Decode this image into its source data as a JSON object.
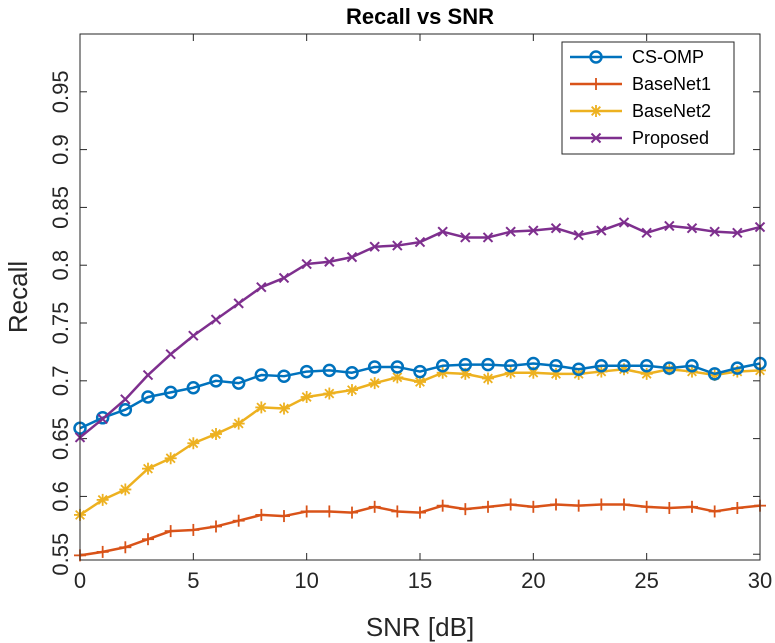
{
  "chart_data": {
    "type": "line",
    "title": "Recall vs SNR",
    "xlabel": "SNR [dB]",
    "ylabel": "Recall",
    "xlim": [
      0,
      30
    ],
    "ylim": [
      0.545,
      1.0
    ],
    "xticks": [
      0,
      5,
      10,
      15,
      20,
      25,
      30
    ],
    "xtick_labels": [
      "0",
      "5",
      "10",
      "15",
      "20",
      "25",
      "30"
    ],
    "yticks": [
      0.55,
      0.6,
      0.65,
      0.7,
      0.75,
      0.8,
      0.85,
      0.9,
      0.95
    ],
    "ytick_labels": [
      "0.55",
      "0.6",
      "0.65",
      "0.7",
      "0.75",
      "0.8",
      "0.85",
      "0.9",
      "0.95"
    ],
    "grid": false,
    "legend_position": "top-right",
    "x": [
      0,
      1,
      2,
      3,
      4,
      5,
      6,
      7,
      8,
      9,
      10,
      11,
      12,
      13,
      14,
      15,
      16,
      17,
      18,
      19,
      20,
      21,
      22,
      23,
      24,
      25,
      26,
      27,
      28,
      29,
      30
    ],
    "series": [
      {
        "name": "CS-OMP",
        "color": "#0072BD",
        "marker": "circle",
        "values": [
          0.659,
          0.668,
          0.675,
          0.686,
          0.69,
          0.694,
          0.7,
          0.698,
          0.705,
          0.704,
          0.708,
          0.709,
          0.707,
          0.712,
          0.712,
          0.708,
          0.713,
          0.714,
          0.714,
          0.713,
          0.715,
          0.713,
          0.71,
          0.713,
          0.713,
          0.713,
          0.711,
          0.713,
          0.706,
          0.711,
          0.715
        ]
      },
      {
        "name": "BaseNet1",
        "color": "#D95319",
        "marker": "plus",
        "values": [
          0.549,
          0.552,
          0.556,
          0.563,
          0.57,
          0.571,
          0.574,
          0.579,
          0.584,
          0.583,
          0.587,
          0.587,
          0.586,
          0.591,
          0.587,
          0.586,
          0.592,
          0.589,
          0.591,
          0.593,
          0.591,
          0.593,
          0.592,
          0.593,
          0.593,
          0.591,
          0.59,
          0.591,
          0.587,
          0.59,
          0.592
        ]
      },
      {
        "name": "BaseNet2",
        "color": "#EDB120",
        "marker": "asterisk",
        "values": [
          0.584,
          0.597,
          0.606,
          0.624,
          0.633,
          0.646,
          0.654,
          0.663,
          0.677,
          0.676,
          0.686,
          0.689,
          0.692,
          0.698,
          0.703,
          0.699,
          0.707,
          0.706,
          0.702,
          0.707,
          0.707,
          0.706,
          0.706,
          0.708,
          0.71,
          0.706,
          0.71,
          0.708,
          0.705,
          0.708,
          0.709
        ]
      },
      {
        "name": "Proposed",
        "color": "#7E2F8E",
        "marker": "x",
        "values": [
          0.651,
          0.667,
          0.684,
          0.705,
          0.723,
          0.739,
          0.753,
          0.767,
          0.781,
          0.789,
          0.801,
          0.803,
          0.807,
          0.816,
          0.817,
          0.82,
          0.829,
          0.824,
          0.824,
          0.829,
          0.83,
          0.832,
          0.826,
          0.83,
          0.837,
          0.828,
          0.834,
          0.832,
          0.829,
          0.828,
          0.833
        ]
      }
    ]
  }
}
